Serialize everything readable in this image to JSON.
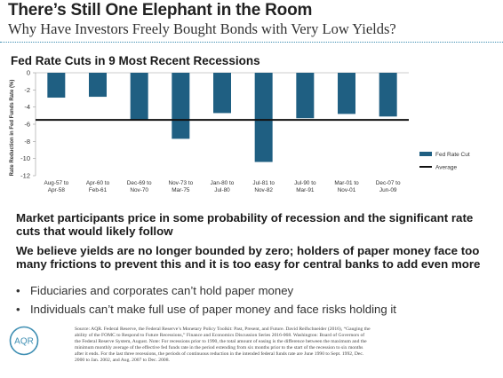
{
  "header": {
    "title": "There’s Still One Elephant in the Room",
    "subtitle": "Why Have Investors Freely Bought Bonds with Very Low Yields?"
  },
  "chart_data": {
    "type": "bar",
    "title": "Fed Rate Cuts in 9 Most Recent Recessions",
    "ylabel": "Rate Reduction in Fed Funds Rate (%)",
    "xlabel": "",
    "categories": [
      [
        "Aug-57 to",
        "Apr-58"
      ],
      [
        "Apr-60 to",
        "Feb-61"
      ],
      [
        "Dec-69 to",
        "Nov-70"
      ],
      [
        "Nov-73 to",
        "Mar-75"
      ],
      [
        "Jan-80 to",
        "Jul-80"
      ],
      [
        "Jul-81 to",
        "Nov-82"
      ],
      [
        "Jul-90 to",
        "Mar-91"
      ],
      [
        "Mar-01 to",
        "Nov-01"
      ],
      [
        "Dec-07 to",
        "Jun-09"
      ]
    ],
    "series": [
      {
        "name": "Fed Rate Cut",
        "type": "bar",
        "color": "#1f5f82",
        "values": [
          -2.9,
          -2.8,
          -5.5,
          -7.7,
          -4.7,
          -10.4,
          -5.3,
          -4.8,
          -5.1
        ]
      },
      {
        "name": "Average",
        "type": "line",
        "color": "#111111",
        "value": -5.5
      }
    ],
    "ylim": [
      -12,
      0
    ],
    "yticks": [
      0,
      -2,
      -4,
      -6,
      -8,
      -10,
      -12
    ],
    "legend": "right"
  },
  "body": {
    "para1": "Market participants price in some probability of recession and the significant rate cuts that would likely follow",
    "para2": "We believe yields are no longer bounded by zero; holders of paper money face too many frictions to prevent this and it is too easy for central banks to add even more",
    "bullets": [
      "Fiduciaries and corporates can’t hold paper money",
      "Individuals can’t make full use of paper money and face risks holding it"
    ],
    "bullet_char": "•"
  },
  "footer": {
    "logo_text": "AQR",
    "source_lines": [
      "Source: AQR. Federal Reserve, the Federal Reserve’s Monetary Policy Toolkit: Past, Present, and Future. David Reifschneider (2016), “Gauging the",
      "ability of the FOMC to Respond to Future Recessions,” Finance and Economics Discussion Series 2016-068. Washington: Board of Governors of",
      "the Federal Reserve System, August. Note: For recessions prior to 1990, the total amount of easing is the difference between the maximum and the",
      "minimum monthly average of the effective fed funds rate in the period extending from six months prior to the start of the recession to six months",
      "after it ends. For the last three recessions, the periods of continuous reduction in the intended federal funds rate are June 1990 to Sept. 1992, Dec.",
      "2000 to Jan. 2002, and Aug. 2007 to Dec. 2008."
    ]
  },
  "colors": {
    "bar": "#1f5f82",
    "average_line": "#111111",
    "rule": "#3f8fb3",
    "logo": "#3f8fb3"
  }
}
